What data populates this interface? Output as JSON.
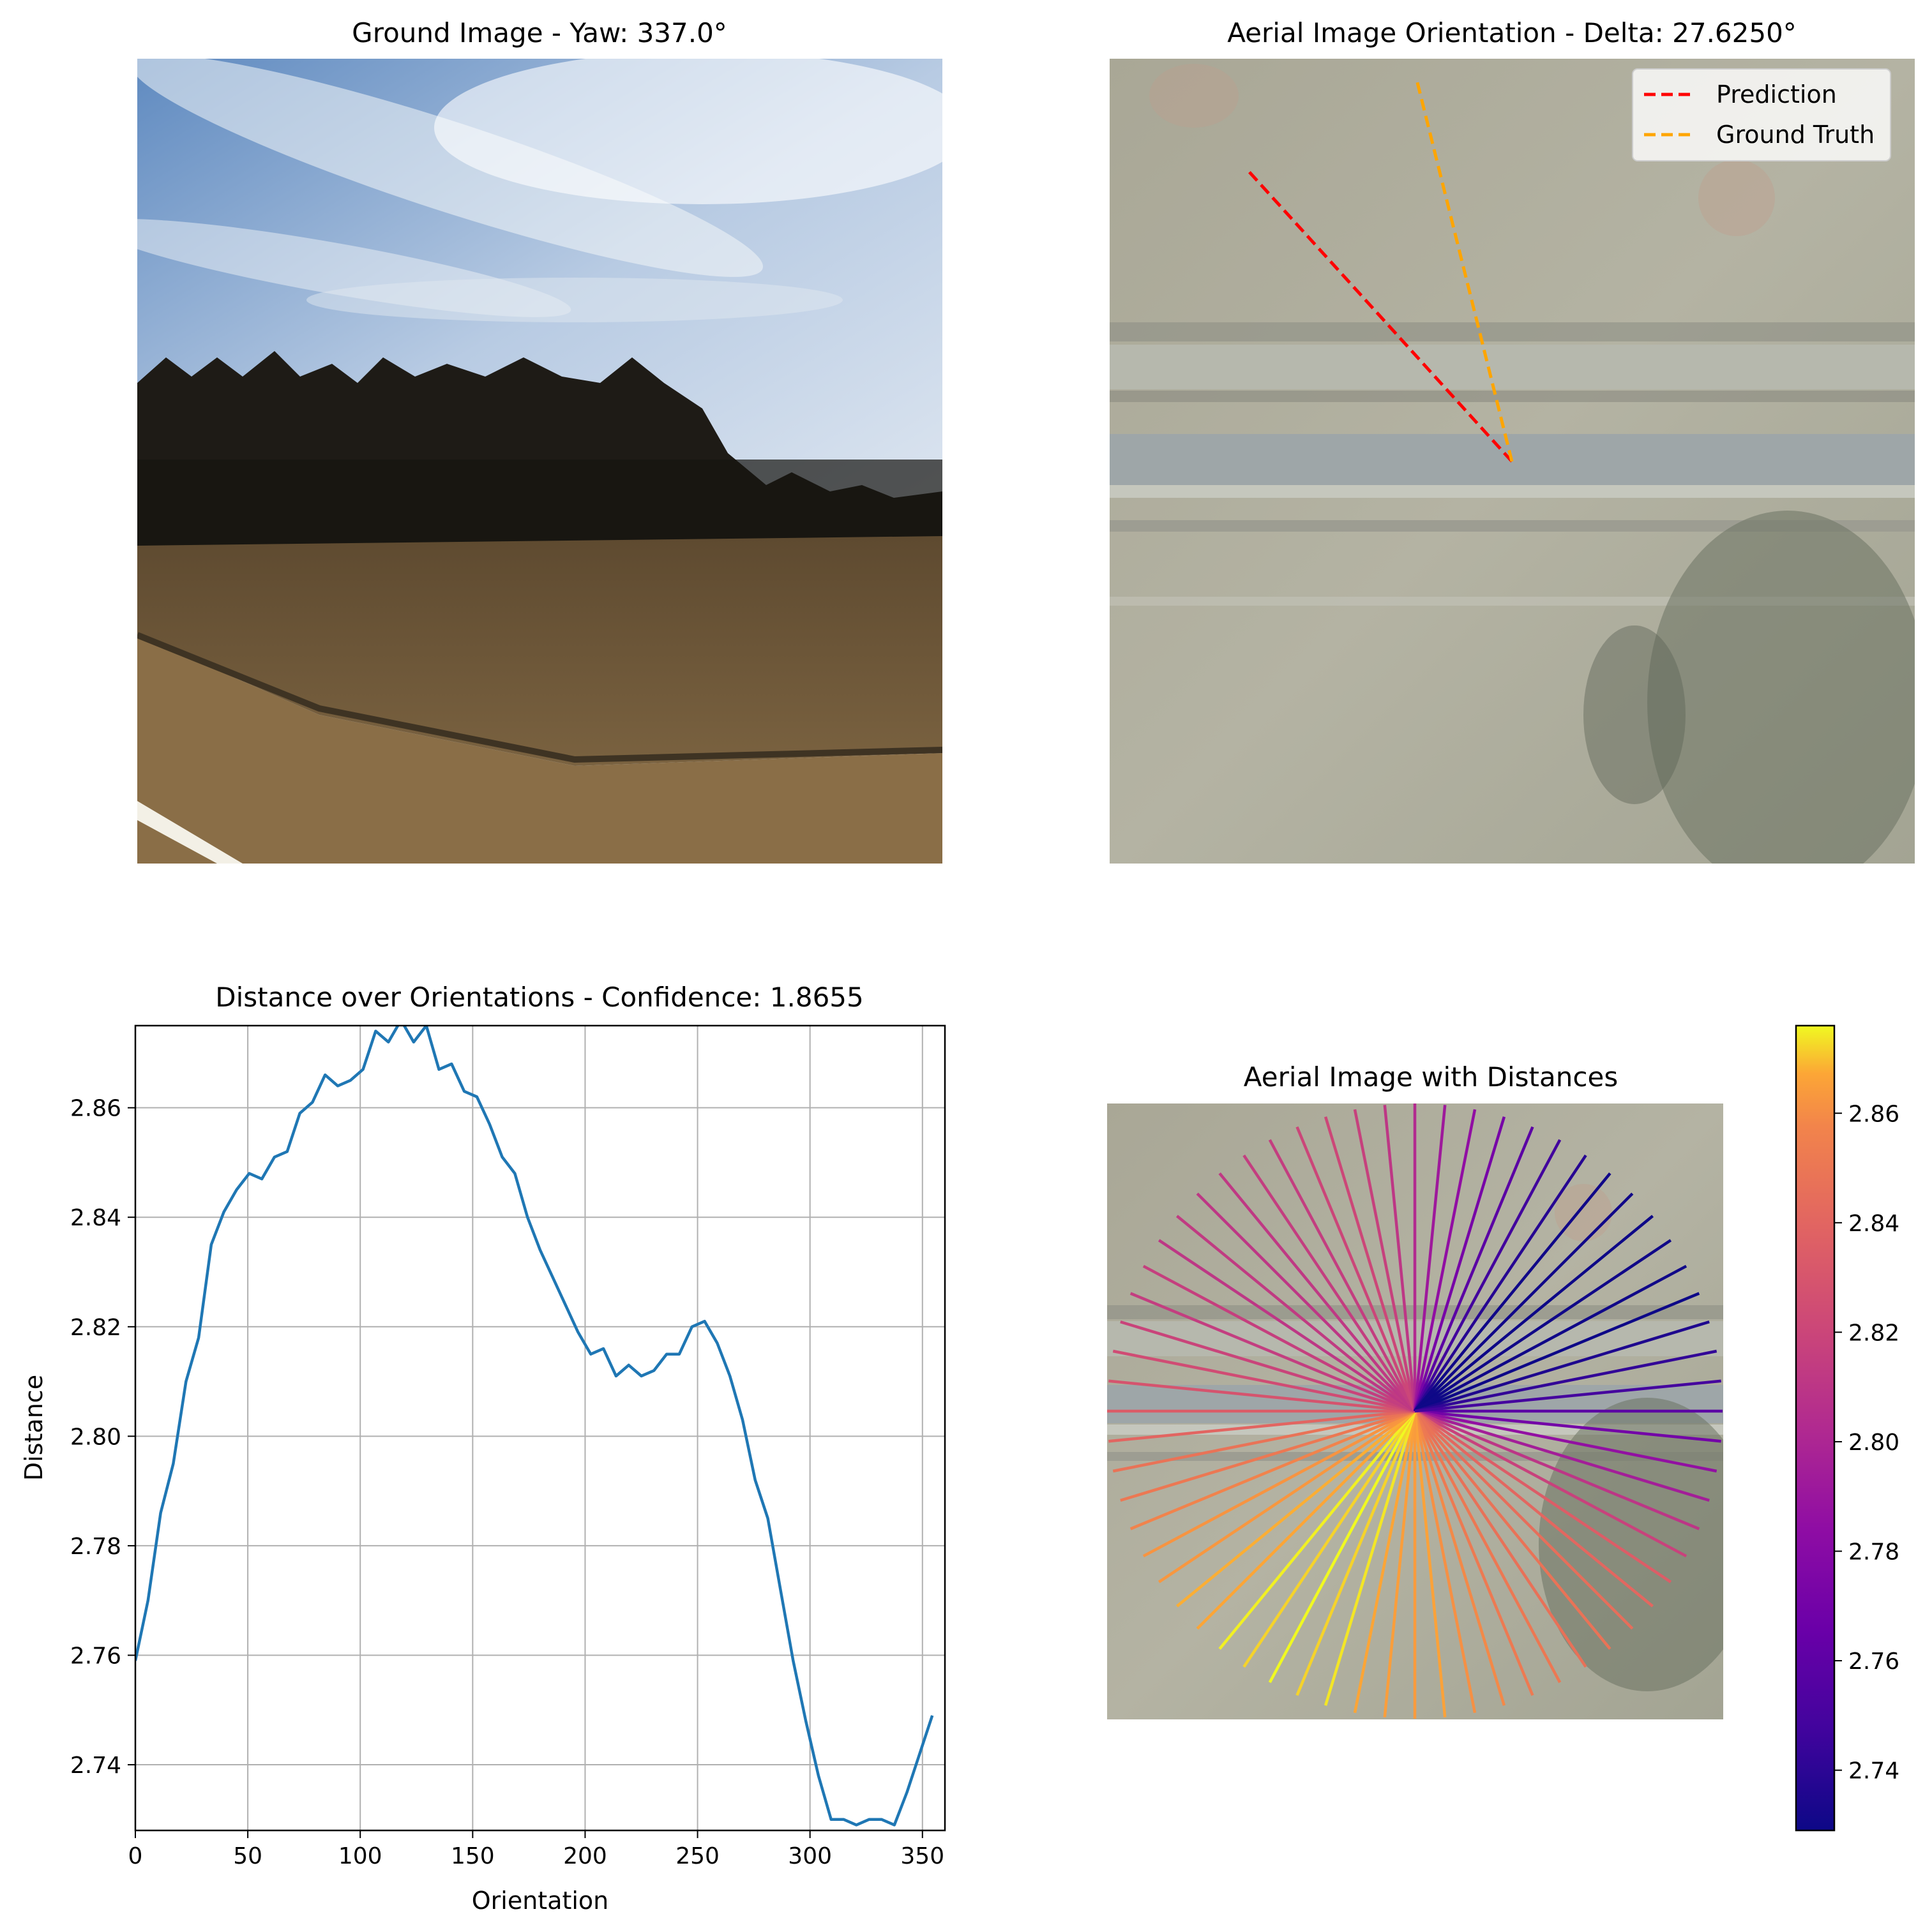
{
  "panels": {
    "ground": {
      "title": "Ground Image - Yaw: 337.0°",
      "scene_colors": {
        "sky_top": "#6e94c4",
        "sky_bottom": "#c9d6e6",
        "trees": "#1c1a16",
        "field": "#6f5535",
        "grass": "#7d6443"
      }
    },
    "aerial": {
      "title": "Aerial Image Orientation - Delta: 27.6250°",
      "legend": [
        {
          "label": "Prediction",
          "color": "#ff0000"
        },
        {
          "label": "Ground Truth",
          "color": "#ffa500"
        }
      ],
      "prediction_angle_deg": 309.4,
      "ground_truth_angle_deg": 337.0
    },
    "distance": {
      "title": "Distance over Orientations - Confidence: 1.8655"
    },
    "aerial_distances": {
      "title": "Aerial Image with Distances",
      "colorbar_ticks": [
        2.74,
        2.76,
        2.78,
        2.8,
        2.82,
        2.84,
        2.86
      ],
      "colorbar_tick_labels": [
        "2.74",
        "2.76",
        "2.78",
        "2.80",
        "2.82",
        "2.84",
        "2.86"
      ],
      "colormap": "plasma"
    }
  },
  "chart_data": {
    "type": "line",
    "title": "Distance over Orientations - Confidence: 1.8655",
    "xlabel": "Orientation",
    "ylabel": "Distance",
    "xlim": [
      0,
      360
    ],
    "ylim": [
      2.728,
      2.875
    ],
    "xticks": [
      0,
      50,
      100,
      150,
      200,
      250,
      300,
      350
    ],
    "xtick_labels": [
      "0",
      "50",
      "100",
      "150",
      "200",
      "250",
      "300",
      "350"
    ],
    "yticks": [
      2.74,
      2.76,
      2.78,
      2.8,
      2.82,
      2.84,
      2.86
    ],
    "ytick_labels": [
      "2.74",
      "2.76",
      "2.78",
      "2.80",
      "2.82",
      "2.84",
      "2.86"
    ],
    "grid": true,
    "color": "#1f77b4",
    "x": [
      0,
      5.625,
      11.25,
      16.875,
      22.5,
      28.125,
      33.75,
      39.375,
      45,
      50.625,
      56.25,
      61.875,
      67.5,
      73.125,
      78.75,
      84.375,
      90,
      95.625,
      101.25,
      106.875,
      112.5,
      118.125,
      123.75,
      129.375,
      135,
      140.625,
      146.25,
      151.875,
      157.5,
      163.125,
      168.75,
      174.375,
      180,
      185.625,
      191.25,
      196.875,
      202.5,
      208.125,
      213.75,
      219.375,
      225,
      230.625,
      236.25,
      241.875,
      247.5,
      253.125,
      258.75,
      264.375,
      270,
      275.625,
      281.25,
      286.875,
      292.5,
      298.125,
      303.75,
      309.375,
      315,
      320.625,
      326.25,
      331.875,
      337.5,
      343.125,
      348.75,
      354.375
    ],
    "y": [
      2.759,
      2.77,
      2.786,
      2.795,
      2.81,
      2.818,
      2.835,
      2.841,
      2.845,
      2.848,
      2.847,
      2.851,
      2.852,
      2.859,
      2.861,
      2.866,
      2.864,
      2.865,
      2.867,
      2.874,
      2.872,
      2.876,
      2.872,
      2.875,
      2.867,
      2.868,
      2.863,
      2.862,
      2.857,
      2.851,
      2.848,
      2.84,
      2.834,
      2.829,
      2.824,
      2.819,
      2.815,
      2.816,
      2.811,
      2.813,
      2.811,
      2.812,
      2.815,
      2.815,
      2.82,
      2.821,
      2.817,
      2.811,
      2.803,
      2.792,
      2.785,
      2.772,
      2.759,
      2.748,
      2.738,
      2.73,
      2.73,
      2.729,
      2.73,
      2.73,
      2.729,
      2.735,
      2.742,
      2.749
    ]
  }
}
